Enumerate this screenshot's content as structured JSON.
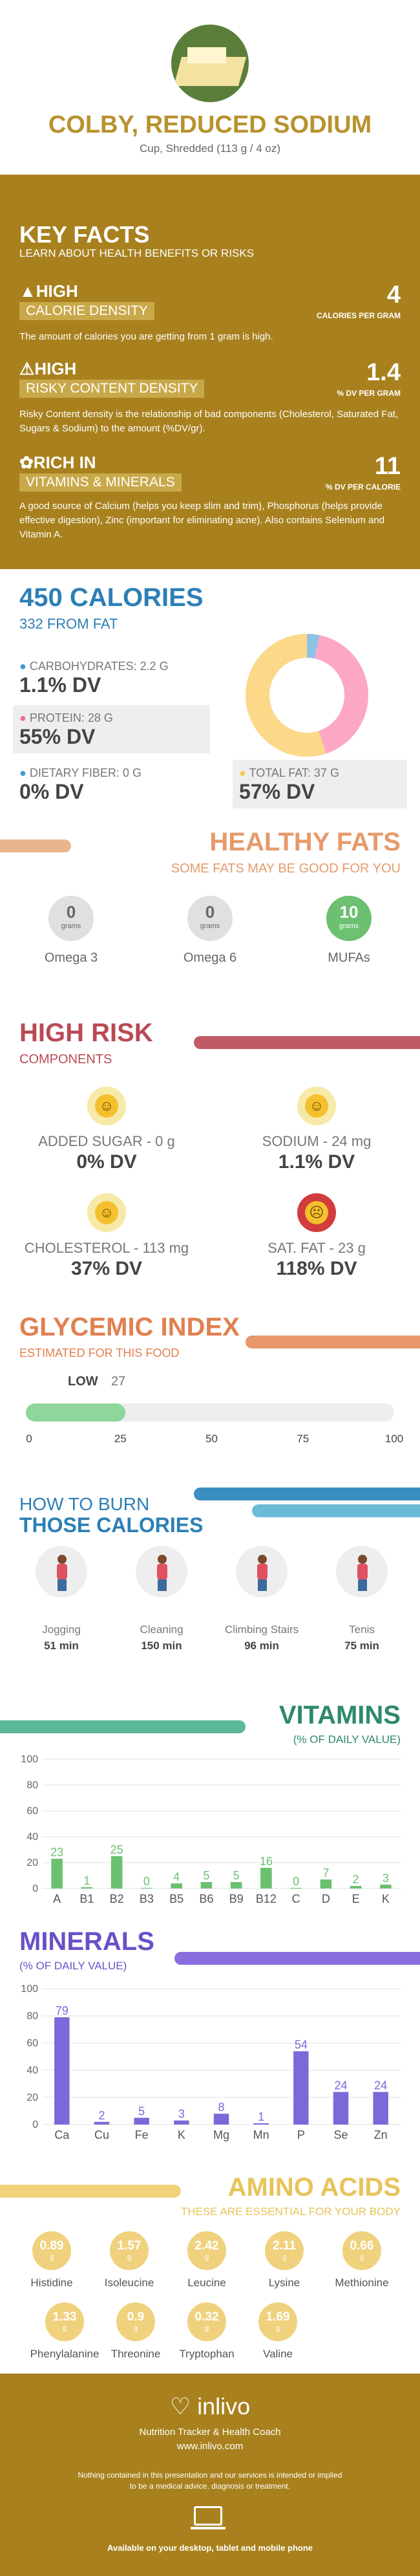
{
  "header": {
    "title": "COLBY, REDUCED SODIUM",
    "subtitle": "Cup, Shredded (113 g / 4 oz)"
  },
  "key_facts": {
    "title": "KEY FACTS",
    "subtitle": "LEARN ABOUT HEALTH BENEFITS OR RISKS",
    "items": [
      {
        "level": "HIGH",
        "label": "CALORIE DENSITY",
        "value": "4",
        "unit": "CALORIES PER GRAM",
        "desc": "The amount of calories you are getting from 1 gram is high."
      },
      {
        "level": "HIGH",
        "label": "RISKY CONTENT DENSITY",
        "value": "1.4",
        "unit": "% DV PER GRAM",
        "desc": "Risky Content density is the relationship of bad components (Cholesterol, Saturated Fat, Sugars & Sodium) to the amount (%DV/gr)."
      },
      {
        "level": "RICH  IN",
        "label": "VITAMINS & MINERALS",
        "value": "11",
        "unit": "% DV PER CALORIE",
        "desc": "A good source of Calcium (helps you keep slim and trim), Phosphorus (helps provide effective digestion), Zinc (important for eliminating acne). Also contains Selenium and Vitamin A."
      }
    ]
  },
  "calories": {
    "title": "450 CALORIES",
    "subtitle": "332 FROM FAT",
    "items": [
      {
        "label": "CARBOHYDRATES: 2.2 g",
        "dv": "1.1% DV",
        "color": "#3d9bd0"
      },
      {
        "label": "PROTEIN: 28 g",
        "dv": "55% DV",
        "color": "#f06b9e"
      },
      {
        "label": "DIETARY FIBER: 0 g",
        "dv": "0% DV",
        "color": "#3d9bd0"
      },
      {
        "label": "TOTAL FAT: 37 g",
        "dv": "57% DV",
        "color": "#f7c65a"
      }
    ],
    "donut": [
      {
        "name": "carbs",
        "value": 2.2,
        "color": "#8fc3e6"
      },
      {
        "name": "protein",
        "value": 28,
        "color": "#fca7c5"
      },
      {
        "name": "fat",
        "value": 37,
        "color": "#fcd889"
      }
    ]
  },
  "healthy_fats": {
    "title": "HEALTHY FATS",
    "subtitle": "SOME FATS MAY BE GOOD FOR YOU",
    "items": [
      {
        "value": "0",
        "unit": "grams",
        "label": "Omega 3",
        "color": "#e0e0e0",
        "text": "#666"
      },
      {
        "value": "0",
        "unit": "grams",
        "label": "Omega 6",
        "color": "#e0e0e0",
        "text": "#666"
      },
      {
        "value": "10",
        "unit": "grams",
        "label": "MUFAs",
        "color": "#6cc070",
        "text": "#fff"
      }
    ]
  },
  "high_risk": {
    "title": "HIGH RISK",
    "subtitle": "COMPONENTS",
    "items": [
      {
        "label": "ADDED SUGAR - 0 g",
        "dv": "0% DV",
        "face": "laugh"
      },
      {
        "label": "SODIUM - 24 mg",
        "dv": "1.1% DV",
        "face": "laugh"
      },
      {
        "label": "CHOLESTEROL - 113 mg",
        "dv": "37% DV",
        "face": "smile"
      },
      {
        "label": "SAT. FAT - 23 g",
        "dv": "118% DV",
        "face": "sick"
      }
    ]
  },
  "glycemic": {
    "title": "GLYCEMIC INDEX",
    "subtitle": "ESTIMATED FOR THIS FOOD",
    "level": "LOW",
    "value": 27,
    "ticks": [
      "0",
      "25",
      "50",
      "75",
      "100"
    ]
  },
  "burn": {
    "title1": "HOW TO BURN",
    "title2": "THOSE CALORIES",
    "items": [
      {
        "label": "Jogging",
        "time": "51 min",
        "icon": "jogging-icon"
      },
      {
        "label": "Cleaning",
        "time": "150 min",
        "icon": "cleaning-icon"
      },
      {
        "label": "Climbing Stairs",
        "time": "96 min",
        "icon": "stairs-icon"
      },
      {
        "label": "Tenis",
        "time": "75 min",
        "icon": "tennis-icon"
      }
    ]
  },
  "vitamins": {
    "title": "VITAMINS",
    "subtitle": "(% OF DAILY VALUE)"
  },
  "minerals": {
    "title": "MINERALS",
    "subtitle": "(% OF DAILY VALUE)"
  },
  "chart_data": [
    {
      "type": "bar",
      "categories": [
        "A",
        "B1",
        "B2",
        "B3",
        "B5",
        "B6",
        "B9",
        "B12",
        "C",
        "D",
        "E",
        "K"
      ],
      "values": [
        23,
        1,
        25,
        0,
        4,
        5,
        5,
        16,
        0,
        7,
        2,
        3
      ],
      "title": "VITAMINS",
      "ylim": [
        0,
        100
      ],
      "yticks": [
        "0",
        "20",
        "40",
        "60",
        "80",
        "100"
      ],
      "color": "#6cc070"
    },
    {
      "type": "bar",
      "categories": [
        "Ca",
        "Cu",
        "Fe",
        "K",
        "Mg",
        "Mn",
        "P",
        "Se",
        "Zn"
      ],
      "values": [
        79,
        2,
        5,
        3,
        8,
        1,
        54,
        24,
        24
      ],
      "title": "MINERALS",
      "ylim": [
        0,
        100
      ],
      "yticks": [
        "0",
        "20",
        "40",
        "60",
        "80",
        "100"
      ],
      "color": "#7b68d9"
    }
  ],
  "amino": {
    "title": "AMINO ACIDS",
    "subtitle": "THESE ARE ESSENTIAL FOR YOUR BODY",
    "unit": "g",
    "items": [
      {
        "value": "0.89",
        "label": "Histidine"
      },
      {
        "value": "1.57",
        "label": "Isoleucine"
      },
      {
        "value": "2.42",
        "label": "Leucine"
      },
      {
        "value": "2.11",
        "label": "Lysine"
      },
      {
        "value": "0.66",
        "label": "Methionine"
      },
      {
        "value": "1.33",
        "label": "Phenylalanine"
      },
      {
        "value": "0.9",
        "label": "Threonine"
      },
      {
        "value": "0.32",
        "label": "Tryptophan"
      },
      {
        "value": "1.69",
        "label": "Valine"
      }
    ]
  },
  "footer": {
    "brand": "inlivo",
    "tagline": "Nutrition Tracker & Health Coach",
    "url": "www.inlivo.com",
    "disclaimer1": "Nothing contained in this presentation and our services is intended or implied",
    "disclaimer2": "to be a medical advice, diagnosis or treatment.",
    "available": "Available on your desktop, tablet and mobile phone"
  }
}
